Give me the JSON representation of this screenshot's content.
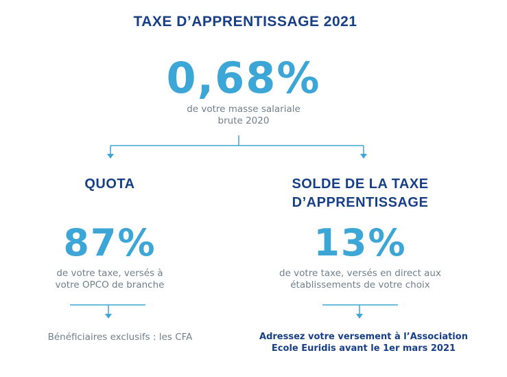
{
  "title": "TAXE D’APPRENTISSAGE 2021",
  "main": {
    "percentage": "0,68%",
    "description_line1": "de votre masse salariale",
    "description_line2": "brute 2020"
  },
  "left": {
    "heading": "QUOTA",
    "percentage": "87%",
    "description_line1": "de votre taxe, versés à",
    "description_line2": "votre OPCO de branche",
    "footer": "Bénéficiaires exclusifs : les CFA"
  },
  "right": {
    "heading_line1": "SOLDE DE LA TAXE",
    "heading_line2": "D’APPRENTISSAGE",
    "percentage": "13%",
    "description_line1": "de votre taxe, versés en direct aux",
    "description_line2": "établissements de votre choix",
    "footer_line1": "Adressez votre versement à l’Association",
    "footer_line2": "Ecole Euridis avant le 1er mars  2021"
  },
  "colors": {
    "navy": "#173f87",
    "accent_blue": "#3ca6d6",
    "text_gray": "#6f7f8c"
  }
}
